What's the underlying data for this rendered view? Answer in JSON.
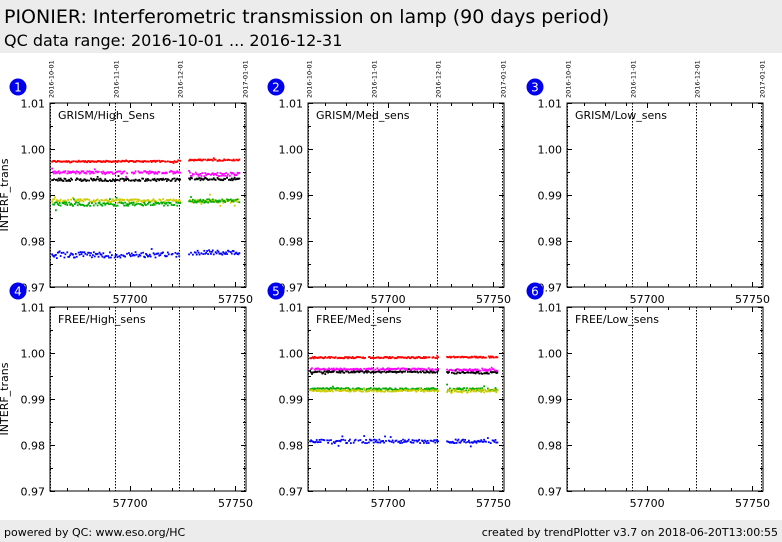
{
  "header": {
    "title": "PIONIER: Interferometric transmission on lamp (90 days period)",
    "subtitle": "QC data range: 2016-10-01 ... 2016-12-31"
  },
  "footer": {
    "left": "powered by QC: www.eso.org/HC",
    "right": "created by trendPlotter v3.7 on 2018-06-20T13:00:55"
  },
  "chart_data": [
    {
      "type": "scatter",
      "badge": "1",
      "title": "GRISM/High_Sens",
      "ylabel": "INTERF_trans",
      "xlim": [
        57662,
        57755
      ],
      "ylim": [
        0.97,
        1.01
      ],
      "xticks": [
        57700,
        57750
      ],
      "yticks": [
        "0.97",
        "0.98",
        "0.99",
        "1.00",
        "1.01"
      ],
      "date_lines": [
        {
          "x": 57662,
          "label": "2016-10-01"
        },
        {
          "x": 57693,
          "label": "2016-11-01"
        },
        {
          "x": 57723,
          "label": "2016-12-01"
        },
        {
          "x": 57754,
          "label": "2017-01-01"
        }
      ],
      "series": [
        {
          "color": "#ff0000",
          "segments": [
            {
              "x0": 57663,
              "x1": 57724,
              "y": 0.9973,
              "jitter": 0.00015
            },
            {
              "x0": 57728,
              "x1": 57752,
              "y": 0.9976,
              "jitter": 0.00015
            }
          ]
        },
        {
          "color": "#ff00ff",
          "segments": [
            {
              "x0": 57663,
              "x1": 57724,
              "y": 0.9949,
              "jitter": 0.0003
            },
            {
              "x0": 57728,
              "x1": 57752,
              "y": 0.9945,
              "jitter": 0.0004
            }
          ]
        },
        {
          "color": "#000000",
          "segments": [
            {
              "x0": 57663,
              "x1": 57724,
              "y": 0.9933,
              "jitter": 0.0003
            },
            {
              "x0": 57728,
              "x1": 57752,
              "y": 0.9935,
              "jitter": 0.0003
            }
          ]
        },
        {
          "color": "#cccc00",
          "segments": [
            {
              "x0": 57663,
              "x1": 57724,
              "y": 0.9888,
              "jitter": 0.0003
            },
            {
              "x0": 57728,
              "x1": 57752,
              "y": 0.9887,
              "jitter": 0.0004
            }
          ]
        },
        {
          "color": "#00aa00",
          "segments": [
            {
              "x0": 57663,
              "x1": 57724,
              "y": 0.988,
              "jitter": 0.0004
            },
            {
              "x0": 57728,
              "x1": 57752,
              "y": 0.9887,
              "jitter": 0.0004
            }
          ]
        },
        {
          "color": "#0000ff",
          "segments": [
            {
              "x0": 57663,
              "x1": 57724,
              "y": 0.977,
              "jitter": 0.0006
            },
            {
              "x0": 57728,
              "x1": 57752,
              "y": 0.9775,
              "jitter": 0.0005
            }
          ]
        }
      ]
    },
    {
      "type": "scatter",
      "badge": "2",
      "title": "GRISM/Med_sens",
      "ylabel": "",
      "xlim": [
        57662,
        57755
      ],
      "ylim": [
        0.97,
        1.01
      ],
      "xticks": [
        57700,
        57750
      ],
      "yticks": [
        "0.97",
        "0.98",
        "0.99",
        "1.00",
        "1.01"
      ],
      "date_lines": [
        {
          "x": 57662,
          "label": "2016-10-01"
        },
        {
          "x": 57693,
          "label": "2016-11-01"
        },
        {
          "x": 57723,
          "label": "2016-12-01"
        },
        {
          "x": 57754,
          "label": "2017-01-01"
        }
      ],
      "series": []
    },
    {
      "type": "scatter",
      "badge": "3",
      "title": "GRISM/Low_sens",
      "ylabel": "",
      "xlim": [
        57662,
        57755
      ],
      "ylim": [
        0.97,
        1.01
      ],
      "xticks": [
        57700,
        57750
      ],
      "yticks": [
        "0.97",
        "0.98",
        "0.99",
        "1.00",
        "1.01"
      ],
      "date_lines": [
        {
          "x": 57662,
          "label": "2016-10-01"
        },
        {
          "x": 57693,
          "label": "2016-11-01"
        },
        {
          "x": 57723,
          "label": "2016-12-01"
        },
        {
          "x": 57754,
          "label": "2017-01-01"
        }
      ],
      "series": []
    },
    {
      "type": "scatter",
      "badge": "4",
      "title": "FREE/High_sens",
      "ylabel": "INTERF_trans",
      "xlim": [
        57662,
        57755
      ],
      "ylim": [
        0.97,
        1.01
      ],
      "xticks": [
        57700,
        57750
      ],
      "yticks": [
        "0.97",
        "0.98",
        "0.99",
        "1.00",
        "1.01"
      ],
      "date_lines": [
        {
          "x": 57662,
          "label": ""
        },
        {
          "x": 57693,
          "label": ""
        },
        {
          "x": 57723,
          "label": ""
        },
        {
          "x": 57754,
          "label": ""
        }
      ],
      "series": []
    },
    {
      "type": "scatter",
      "badge": "5",
      "title": "FREE/Med_sens",
      "ylabel": "",
      "xlim": [
        57662,
        57755
      ],
      "ylim": [
        0.97,
        1.01
      ],
      "xticks": [
        57700,
        57750
      ],
      "yticks": [
        "0.97",
        "0.98",
        "0.99",
        "1.00",
        "1.01"
      ],
      "date_lines": [
        {
          "x": 57662,
          "label": ""
        },
        {
          "x": 57693,
          "label": ""
        },
        {
          "x": 57723,
          "label": ""
        },
        {
          "x": 57754,
          "label": ""
        }
      ],
      "series": [
        {
          "color": "#ff0000",
          "segments": [
            {
              "x0": 57663,
              "x1": 57724,
              "y": 0.999,
              "jitter": 0.00015
            },
            {
              "x0": 57728,
              "x1": 57752,
              "y": 0.9991,
              "jitter": 0.00015
            }
          ]
        },
        {
          "color": "#ff00ff",
          "segments": [
            {
              "x0": 57663,
              "x1": 57724,
              "y": 0.9965,
              "jitter": 0.0002
            },
            {
              "x0": 57728,
              "x1": 57752,
              "y": 0.9963,
              "jitter": 0.0002
            }
          ]
        },
        {
          "color": "#000000",
          "segments": [
            {
              "x0": 57663,
              "x1": 57724,
              "y": 0.9959,
              "jitter": 0.0002
            },
            {
              "x0": 57728,
              "x1": 57752,
              "y": 0.9957,
              "jitter": 0.0002
            }
          ]
        },
        {
          "color": "#00aa00",
          "segments": [
            {
              "x0": 57663,
              "x1": 57724,
              "y": 0.9922,
              "jitter": 0.0002
            },
            {
              "x0": 57728,
              "x1": 57752,
              "y": 0.9921,
              "jitter": 0.0003
            }
          ]
        },
        {
          "color": "#cccc00",
          "segments": [
            {
              "x0": 57663,
              "x1": 57724,
              "y": 0.9918,
              "jitter": 0.0002
            },
            {
              "x0": 57728,
              "x1": 57752,
              "y": 0.9917,
              "jitter": 0.0004
            }
          ]
        },
        {
          "color": "#0000ff",
          "segments": [
            {
              "x0": 57663,
              "x1": 57724,
              "y": 0.9808,
              "jitter": 0.0004
            },
            {
              "x0": 57728,
              "x1": 57752,
              "y": 0.9808,
              "jitter": 0.0004
            }
          ]
        }
      ]
    },
    {
      "type": "scatter",
      "badge": "6",
      "title": "FREE/Low_sens",
      "ylabel": "",
      "xlim": [
        57662,
        57755
      ],
      "ylim": [
        0.97,
        1.01
      ],
      "xticks": [
        57700,
        57750
      ],
      "yticks": [
        "0.97",
        "0.98",
        "0.99",
        "1.00",
        "1.01"
      ],
      "date_lines": [
        {
          "x": 57662,
          "label": ""
        },
        {
          "x": 57693,
          "label": ""
        },
        {
          "x": 57723,
          "label": ""
        },
        {
          "x": 57754,
          "label": ""
        }
      ],
      "series": []
    }
  ]
}
